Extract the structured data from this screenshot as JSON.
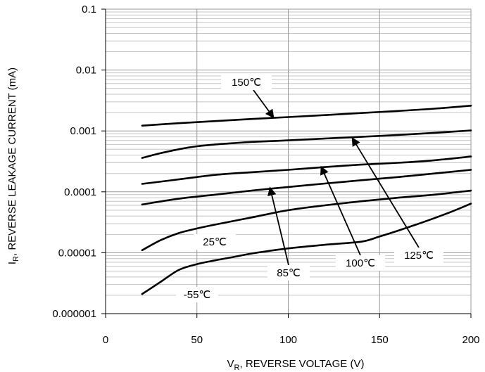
{
  "chart_data": {
    "type": "line",
    "title": "",
    "xlabel": {
      "main": "V",
      "sub": "R",
      "rest": ",  REVERSE VOLTAGE (V)"
    },
    "ylabel": {
      "main": "I",
      "sub": "R",
      "rest": ",  REVERSE LEAKAGE CURRENT (mA)"
    },
    "xlim": [
      0,
      200
    ],
    "ylim": [
      1e-06,
      0.1
    ],
    "yscale": "log",
    "grid": true,
    "x_ticks": [
      0,
      50,
      100,
      150,
      200
    ],
    "x_tick_labels": [
      "0",
      "50",
      "100",
      "150",
      "200"
    ],
    "y_ticks": [
      1e-06,
      1e-05,
      0.0001,
      0.001,
      0.01,
      0.1
    ],
    "y_tick_labels": [
      "0.000001",
      "0.00001",
      "0.0001",
      "0.001",
      "0.01",
      "0.1"
    ],
    "series": [
      {
        "name": "150℃",
        "x": [
          20,
          40,
          60,
          80,
          100,
          120,
          140,
          160,
          180,
          200
        ],
        "y": [
          0.00122,
          0.00134,
          0.00145,
          0.00157,
          0.00169,
          0.00182,
          0.00197,
          0.00213,
          0.00232,
          0.0026
        ]
      },
      {
        "name": "125℃",
        "x": [
          20,
          30,
          40,
          50,
          60,
          70,
          80,
          100,
          120,
          140,
          160,
          180,
          200
        ],
        "y": [
          0.00036,
          0.00043,
          0.0005,
          0.00056,
          0.0006,
          0.00063,
          0.00066,
          0.0007,
          0.00075,
          0.0008,
          0.00086,
          0.00093,
          0.00102
        ]
      },
      {
        "name": "100℃",
        "x": [
          20,
          40,
          60,
          80,
          100,
          120,
          140,
          160,
          180,
          200
        ],
        "y": [
          0.000135,
          0.00016,
          0.00019,
          0.00021,
          0.00023,
          0.000255,
          0.00028,
          0.0003,
          0.00033,
          0.00038
        ]
      },
      {
        "name": "85℃",
        "x": [
          20,
          40,
          60,
          80,
          100,
          120,
          140,
          160,
          180,
          200
        ],
        "y": [
          6.2e-05,
          7.7e-05,
          9e-05,
          0.000105,
          0.00012,
          0.000137,
          0.000155,
          0.000175,
          0.0002,
          0.00023
        ]
      },
      {
        "name": "25℃",
        "x": [
          20,
          30,
          40,
          50,
          60,
          80,
          100,
          120,
          140,
          160,
          180,
          200
        ],
        "y": [
          1.1e-05,
          1.6e-05,
          2.1e-05,
          2.5e-05,
          2.9e-05,
          3.8e-05,
          5e-05,
          6e-05,
          7e-05,
          8e-05,
          9e-05,
          0.000105
        ]
      },
      {
        "name": "-55℃",
        "x": [
          20,
          30,
          40,
          50,
          60,
          70,
          80,
          100,
          120,
          140,
          150,
          160,
          170,
          180,
          190,
          200
        ],
        "y": [
          2.1e-06,
          3.3e-06,
          5.2e-06,
          6.5e-06,
          7.5e-06,
          8.5e-06,
          9.7e-06,
          1.18e-05,
          1.35e-05,
          1.52e-05,
          1.85e-05,
          2.3e-05,
          2.9e-05,
          3.7e-05,
          4.8e-05,
          6.4e-05
        ]
      }
    ],
    "annotations": [
      {
        "label": "150℃",
        "arrow_to": [
          92,
          0.00165
        ]
      },
      {
        "label": "125℃",
        "arrow_to": [
          135,
          0.00077
        ]
      },
      {
        "label": "100℃",
        "arrow_to": [
          118,
          0.00026
        ]
      },
      {
        "label": "85℃",
        "arrow_to": [
          90,
          0.000118
        ]
      },
      {
        "label": "25℃",
        "arrow_to": null
      },
      {
        "label": "-55℃",
        "arrow_to": null
      }
    ]
  }
}
